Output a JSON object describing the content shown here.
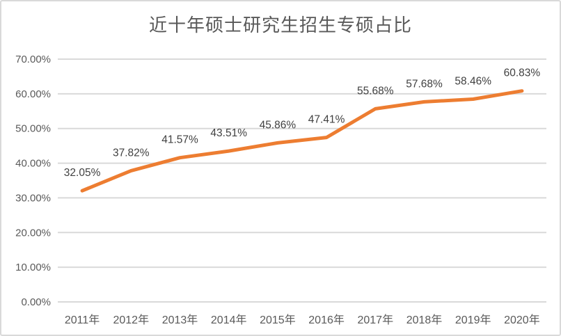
{
  "chart_data": {
    "type": "line",
    "title": "近十年硕士研究生招生专硕占比",
    "categories": [
      "2011年",
      "2012年",
      "2013年",
      "2014年",
      "2015年",
      "2016年",
      "2017年",
      "2018年",
      "2019年",
      "2020年"
    ],
    "series": [
      {
        "name": "专硕占比",
        "values": [
          32.05,
          37.82,
          41.57,
          43.51,
          45.86,
          47.41,
          55.68,
          57.68,
          58.46,
          60.83
        ],
        "data_labels": [
          "32.05%",
          "37.82%",
          "41.57%",
          "43.51%",
          "45.86%",
          "47.41%",
          "55.68%",
          "57.68%",
          "58.46%",
          "60.83%"
        ]
      }
    ],
    "xlabel": "",
    "ylabel": "",
    "ylim": [
      0,
      70
    ],
    "ytick_values": [
      0,
      10,
      20,
      30,
      40,
      50,
      60,
      70
    ],
    "ytick_labels": [
      "0.00%",
      "10.00%",
      "20.00%",
      "30.00%",
      "40.00%",
      "50.00%",
      "60.00%",
      "70.00%"
    ],
    "grid": true,
    "legend": "none",
    "colors": {
      "line": "#ED7D31",
      "grid": "#D9D9D9",
      "axis_text": "#595959",
      "data_label_text": "#404040",
      "title_text": "#595959",
      "background": "#FFFFFF",
      "frame_border": "#D9D9D9"
    }
  }
}
